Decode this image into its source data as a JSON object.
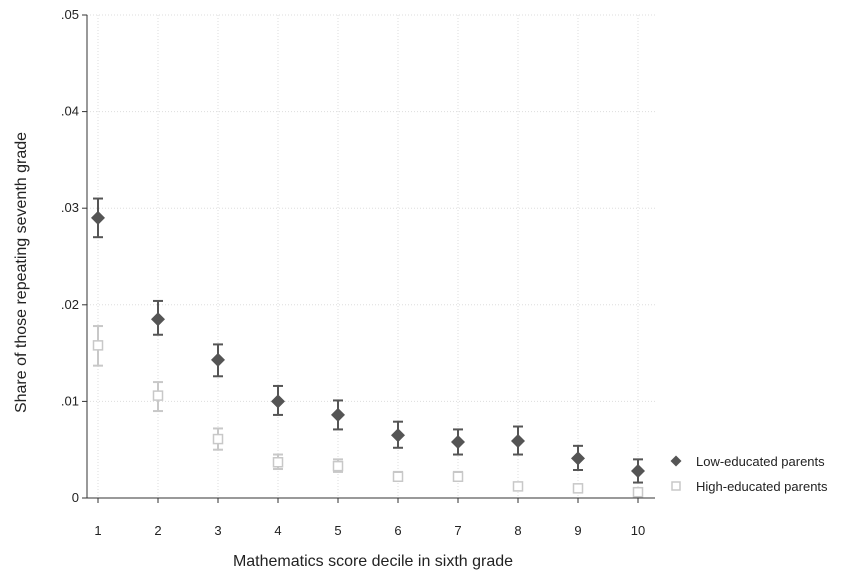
{
  "chart_data": {
    "type": "scatter",
    "title": "",
    "xlabel": "Mathematics score decile in sixth grade",
    "ylabel": "Share of those repeating seventh grade",
    "xlim": [
      1,
      10
    ],
    "ylim": [
      0,
      0.05
    ],
    "x_ticks": [
      1,
      2,
      3,
      4,
      5,
      6,
      7,
      8,
      9,
      10
    ],
    "x_tick_labels": [
      "1",
      "2",
      "3",
      "4",
      "5",
      "6",
      "7",
      "8",
      "9",
      "10"
    ],
    "y_ticks": [
      0,
      0.01,
      0.02,
      0.03,
      0.04,
      0.05
    ],
    "y_tick_labels": [
      "0",
      ".01",
      ".02",
      ".03",
      ".04",
      ".05"
    ],
    "grid": true,
    "legend_position": "right",
    "series": [
      {
        "name": "Low-educated parents",
        "marker": "diamond",
        "color": "#555555",
        "x": [
          1,
          2,
          3,
          4,
          5,
          6,
          7,
          8,
          9,
          10
        ],
        "y": [
          0.029,
          0.0185,
          0.0143,
          0.01,
          0.0086,
          0.0065,
          0.0058,
          0.0059,
          0.0041,
          0.0028
        ],
        "ci_low": [
          0.027,
          0.0169,
          0.0126,
          0.0086,
          0.0071,
          0.0052,
          0.0045,
          0.0045,
          0.0029,
          0.0016
        ],
        "ci_high": [
          0.031,
          0.0204,
          0.0159,
          0.0116,
          0.0101,
          0.0079,
          0.0071,
          0.0074,
          0.0054,
          0.004
        ]
      },
      {
        "name": "High-educated parents",
        "marker": "square-hollow",
        "color": "#c8c8c8",
        "x": [
          1,
          2,
          3,
          4,
          5,
          6,
          7,
          8,
          9,
          10
        ],
        "y": [
          0.0158,
          0.0106,
          0.0061,
          0.0037,
          0.0033,
          0.0022,
          0.0022,
          0.0012,
          0.001,
          0.0006
        ],
        "ci_low": [
          0.0137,
          0.009,
          0.005,
          0.003,
          0.0027,
          0.0018,
          0.0018,
          0.0009,
          0.0007,
          0.0003
        ],
        "ci_high": [
          0.0178,
          0.012,
          0.0072,
          0.0045,
          0.004,
          0.0027,
          0.0027,
          0.0015,
          0.0013,
          0.0009
        ]
      }
    ]
  }
}
